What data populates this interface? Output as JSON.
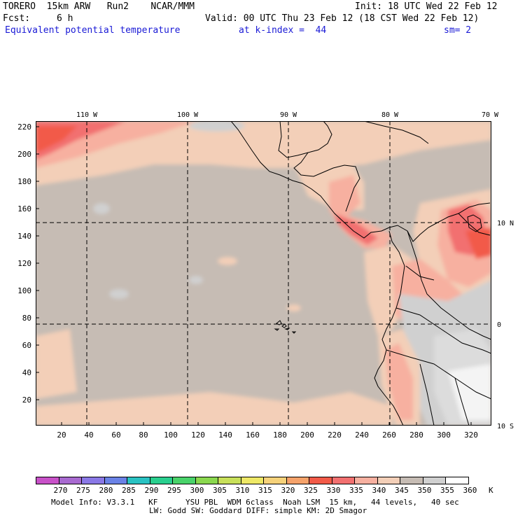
{
  "header": {
    "model_line": "TORERO  15km ARW   Run2    NCAR/MMM",
    "init_line": "Init: 18 UTC Wed 22 Feb 12",
    "fcst_label": "Fcst:",
    "fcst_value": "6 h",
    "valid_line": "Valid: 00 UTC Thu 23 Feb 12 (18 CST Wed 22 Feb 12)",
    "field_title": "Equivalent potential temperature",
    "kindex_text": "at k-index =  44",
    "smoothing_text": "sm= 2"
  },
  "map": {
    "lon_labels": [
      "110 W",
      "100 W",
      "90 W",
      "80 W",
      "70 W"
    ],
    "lat_labels": [
      "10 N",
      "0",
      "10 S"
    ],
    "y_ticks": [
      "220",
      "200",
      "180",
      "160",
      "140",
      "120",
      "100",
      "80",
      "60",
      "40",
      "20"
    ],
    "x_ticks": [
      "20",
      "40",
      "60",
      "80",
      "100",
      "120",
      "140",
      "160",
      "180",
      "200",
      "220",
      "240",
      "260",
      "280",
      "300",
      "320"
    ]
  },
  "colorbar": {
    "unit": "K",
    "labels": [
      "270",
      "275",
      "280",
      "285",
      "290",
      "295",
      "300",
      "305",
      "310",
      "315",
      "320",
      "325",
      "330",
      "335",
      "340",
      "345",
      "350",
      "355",
      "360"
    ],
    "colors": [
      "#c851c8",
      "#a86ad0",
      "#8a78e6",
      "#6a82e6",
      "#29c2c2",
      "#29cf8e",
      "#49d36a",
      "#8ad84e",
      "#c8e05a",
      "#eee866",
      "#f6d27a",
      "#f5a26a",
      "#f25a48",
      "#f27070",
      "#f7b0a0",
      "#f3cfb8",
      "#c6bcb4",
      "#d0d0d0",
      "#ffffff"
    ]
  },
  "footer": {
    "line1": "Model Info: V3.3.1   KF      YSU PBL  WDM 6class  Noah LSM  15 km,   44 levels,   40 sec",
    "line2": "LW: Godd SW: Goddard DIFF: simple KM: 2D Smagor"
  }
}
